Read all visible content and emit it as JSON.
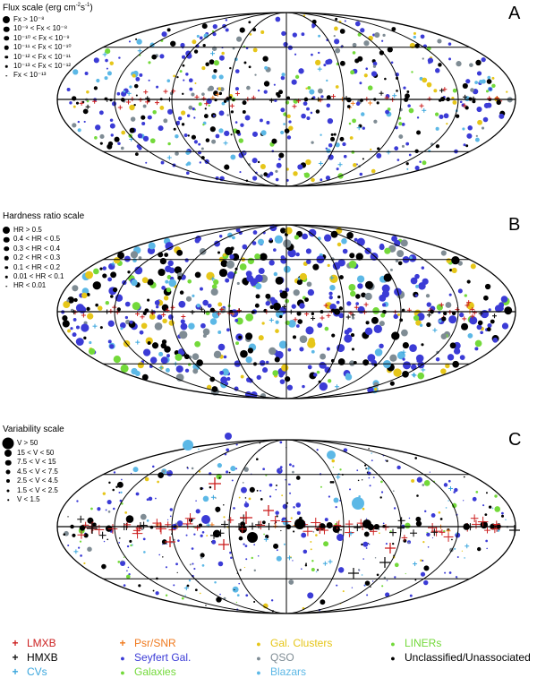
{
  "panels": [
    {
      "letter": "A",
      "scale_title_prefix": "Flux scale (erg cm",
      "scale_title_sup1": "-2",
      "scale_title_mid": "s",
      "scale_title_sup2": "-1",
      "scale_title_suffix": ")",
      "scale_items": [
        "Fx > 10⁻⁸",
        "10⁻⁹ < Fx < 10⁻⁸",
        "10⁻¹⁰ < Fx < 10⁻⁹",
        "10⁻¹¹ < Fx < 10⁻¹⁰",
        "10⁻¹² < Fx < 10⁻¹¹",
        "10⁻¹³ < Fx < 10⁻¹²",
        "Fx < 10⁻¹³"
      ]
    },
    {
      "letter": "B",
      "scale_title": "Hardness ratio scale",
      "scale_items": [
        "HR > 0.5",
        "0.4 < HR < 0.5",
        "0.3 < HR < 0.4",
        "0.2 < HR < 0.3",
        "0.1 < HR < 0.2",
        "0.01 < HR < 0.1",
        "HR < 0.01"
      ]
    },
    {
      "letter": "C",
      "scale_title": "Variability scale",
      "scale_items": [
        "V > 50",
        "15 < V < 50",
        "7.5 < V < 15",
        "4.5 < V < 7.5",
        "2.5 < V < 4.5",
        "1.5 < V < 2.5",
        "V < 1.5"
      ]
    }
  ],
  "legend": [
    {
      "label": "LMXB",
      "marker": "+",
      "color": "#cc1f1f"
    },
    {
      "label": "Psr/SNR",
      "marker": "+",
      "color": "#f07a1e"
    },
    {
      "label": "Gal. Clusters",
      "marker": "●",
      "color": "#e6c619"
    },
    {
      "label": "LINERs",
      "marker": "●",
      "color": "#73d93a"
    },
    {
      "label": "HMXB",
      "marker": "+",
      "color": "#111111"
    },
    {
      "label": "Seyfert Gal.",
      "marker": "●",
      "color": "#3b3bd6"
    },
    {
      "label": "QSO",
      "marker": "●",
      "color": "#7f8c94"
    },
    {
      "label": "Unclassified/Unassociated",
      "marker": "●",
      "color": "#000000"
    },
    {
      "label": "CVs",
      "marker": "+",
      "color": "#3aa6dd"
    },
    {
      "label": "Galaxies",
      "marker": "●",
      "color": "#73d93a"
    },
    {
      "label": "Blazars",
      "marker": "●",
      "color": "#5cb8e6"
    }
  ],
  "colors": {
    "lmxb": "#cc1f1f",
    "psr": "#f07a1e",
    "cluster": "#e6c619",
    "liner": "#73d93a",
    "hmxb": "#111111",
    "seyfert": "#3b3bd6",
    "qso": "#7f8c94",
    "unclassified": "#000000",
    "cv": "#3aa6dd",
    "galaxy": "#73d93a",
    "blazar": "#5cb8e6"
  }
}
